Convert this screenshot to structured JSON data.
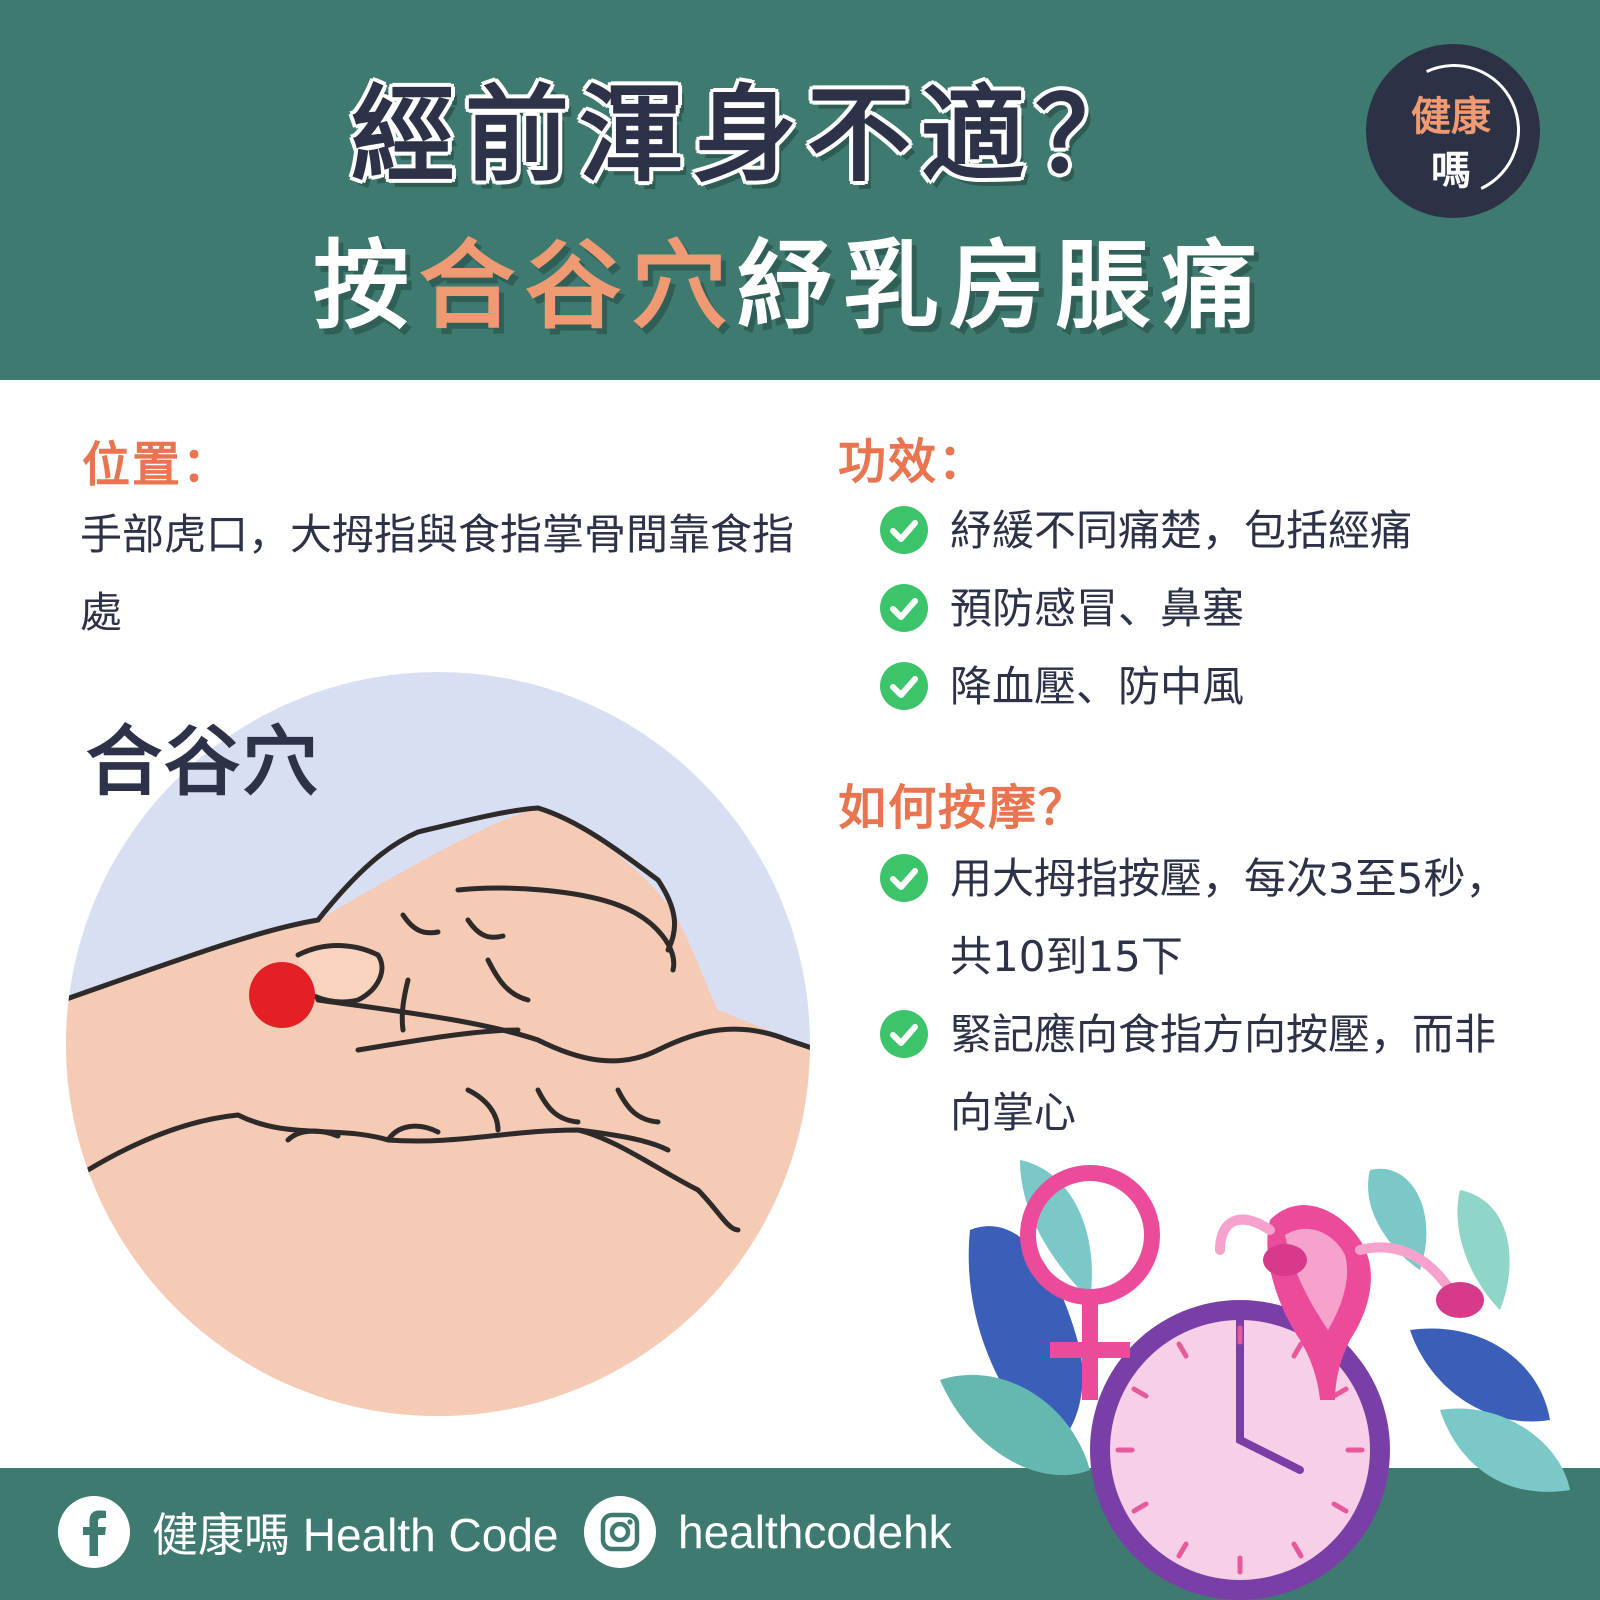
{
  "header": {
    "title_line1": "經前渾身不適？",
    "title_line2_pre": "按",
    "title_line2_accent": "合谷穴",
    "title_line2_post": "紓乳房脹痛",
    "badge_line1": "健康",
    "badge_line2": "嗎"
  },
  "location": {
    "title": "位置：",
    "text": "手部虎口，大拇指與食指掌骨間靠食指處"
  },
  "illustration": {
    "label": "合谷穴"
  },
  "effects": {
    "title": "功效：",
    "items": [
      "紓緩不同痛楚，包括經痛",
      "預防感冒、鼻塞",
      "降血壓、防中風"
    ]
  },
  "massage": {
    "title": "如何按摩？",
    "items": [
      "用大拇指按壓，每次3至5秒，共10到15下",
      "緊記應向食指方向按壓，而非向掌心"
    ]
  },
  "footer": {
    "facebook_text": "健康嗎 Health Code",
    "instagram_text": "healthcodehk"
  },
  "colors": {
    "header_bg": "#3e7a70",
    "accent": "#ef9a72",
    "section_title": "#e8754f",
    "text_dark": "#2e3248",
    "check_green": "#3cc46a",
    "acupoint_red": "#e41f26"
  }
}
